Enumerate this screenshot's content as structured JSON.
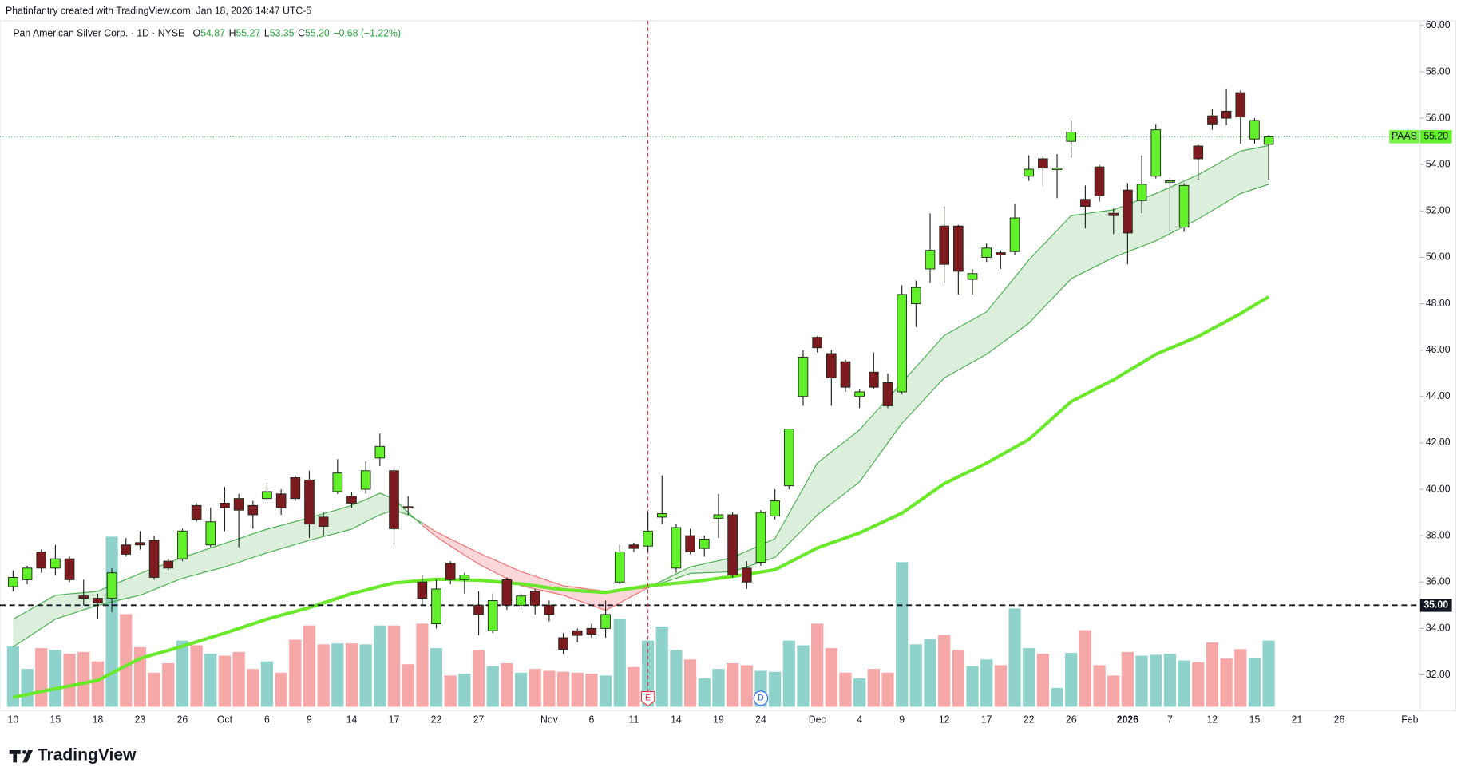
{
  "header": "Phatinfantry created with TradingView.com, Jan 18, 2026 14:47 UTC-5",
  "footer": "TradingView",
  "chart_data": {
    "type": "candlestick",
    "title": "Pan American Silver Corp. · 1D · NYSE",
    "legend_keys": [
      "O",
      "H",
      "L",
      "C"
    ],
    "change": "−0.68 (−1.22%)",
    "symbol": "PAAS",
    "last_price": {
      "value": 55.2,
      "label": "55.20"
    },
    "hline": {
      "value": 35,
      "label": "35.00"
    },
    "ylim": [
      30.46,
      60.2
    ],
    "yticks": [
      {
        "value": 32,
        "label": "32.00"
      },
      {
        "value": 34,
        "label": "34.00"
      },
      {
        "value": 36,
        "label": "36.00"
      },
      {
        "value": 38,
        "label": "38.00"
      },
      {
        "value": 40,
        "label": "40.00"
      },
      {
        "value": 42,
        "label": "42.00"
      },
      {
        "value": 44,
        "label": "44.00"
      },
      {
        "value": 46,
        "label": "46.00"
      },
      {
        "value": 48,
        "label": "48.00"
      },
      {
        "value": 50,
        "label": "50.00"
      },
      {
        "value": 52,
        "label": "52.00"
      },
      {
        "value": 54,
        "label": "54.00"
      },
      {
        "value": 56,
        "label": "56.00"
      },
      {
        "value": 58,
        "label": "58.00"
      },
      {
        "value": 60,
        "label": "60.00"
      }
    ],
    "categories": [
      "10",
      null,
      null,
      "15",
      null,
      null,
      "18",
      null,
      null,
      "23",
      null,
      null,
      "26",
      null,
      null,
      "Oct",
      null,
      null,
      "6",
      null,
      null,
      "9",
      null,
      null,
      "14",
      null,
      null,
      "17",
      null,
      null,
      "22",
      null,
      null,
      "27",
      null,
      null,
      null,
      null,
      "Nov",
      null,
      null,
      "6",
      null,
      null,
      "11",
      null,
      null,
      "14",
      null,
      null,
      "19",
      null,
      null,
      "24",
      null,
      null,
      null,
      "Dec",
      null,
      null,
      "4",
      null,
      null,
      "9",
      null,
      null,
      "12",
      null,
      null,
      "17",
      null,
      null,
      "22",
      null,
      null,
      "26",
      null,
      null,
      null,
      "2026",
      null,
      null,
      "7",
      null,
      null,
      "12",
      null,
      null,
      "15",
      null,
      null,
      "21",
      null,
      null,
      "26",
      null,
      null,
      null,
      null,
      "Feb"
    ],
    "bold_categories": [
      "2026"
    ],
    "candles": {
      "open": [
        35.8,
        36.1,
        37.3,
        36.6,
        37.0,
        35.4,
        35.3,
        35.3,
        37.6,
        37.7,
        37.8,
        36.9,
        37.0,
        39.3,
        37.6,
        39.4,
        39.6,
        39.3,
        39.6,
        39.8,
        40.5,
        40.4,
        38.8,
        39.9,
        39.7,
        40.0,
        41.35,
        40.8,
        39.25,
        36.0,
        34.2,
        36.8,
        36.1,
        35.0,
        33.9,
        36.1,
        35.0,
        35.6,
        35.0,
        33.6,
        33.9,
        34.0,
        34.0,
        36.0,
        37.6,
        37.55,
        38.8,
        36.6,
        38.0,
        37.45,
        38.75,
        38.9,
        36.6,
        36.85,
        38.85,
        40.15,
        44.0,
        46.55,
        45.85,
        45.5,
        44.0,
        45.05,
        44.6,
        44.2,
        48.0,
        49.5,
        51.35,
        51.35,
        49.05,
        50.0,
        50.2,
        50.25,
        53.5,
        54.25,
        53.8,
        55.0,
        52.5,
        53.9,
        51.9,
        52.9,
        52.45,
        53.5,
        53.25,
        51.3,
        54.8,
        56.1,
        56.3,
        57.1,
        55.1,
        54.87,
        null,
        null,
        null,
        null,
        null,
        null,
        null,
        null,
        null,
        null
      ],
      "high": [
        36.5,
        36.7,
        37.4,
        37.6,
        37.1,
        36.1,
        35.5,
        36.6,
        37.9,
        38.2,
        38.0,
        37.0,
        38.3,
        39.4,
        39.2,
        40.1,
        39.8,
        39.5,
        40.3,
        40.0,
        40.6,
        40.8,
        39.0,
        41.3,
        39.9,
        41.2,
        42.4,
        41.0,
        39.7,
        36.3,
        36.1,
        36.9,
        36.4,
        35.6,
        35.5,
        36.2,
        35.5,
        35.7,
        35.2,
        33.8,
        34.0,
        34.2,
        35.2,
        37.6,
        37.7,
        39.0,
        40.6,
        38.5,
        38.3,
        38.0,
        39.8,
        39.0,
        36.9,
        39.1,
        40.0,
        42.6,
        46.0,
        46.6,
        46.0,
        45.6,
        44.3,
        45.9,
        45.0,
        48.8,
        49.0,
        51.9,
        52.2,
        51.4,
        49.5,
        50.6,
        50.3,
        52.3,
        54.4,
        54.4,
        54.45,
        55.9,
        53.1,
        54.0,
        52.1,
        53.2,
        54.4,
        55.75,
        53.4,
        53.2,
        54.85,
        56.4,
        57.25,
        57.2,
        56.0,
        55.27,
        null,
        null,
        null,
        null,
        null,
        null,
        null,
        null,
        null,
        null
      ],
      "low": [
        35.6,
        35.9,
        36.4,
        36.3,
        36.0,
        35.0,
        34.4,
        34.7,
        37.1,
        37.4,
        36.1,
        36.5,
        36.9,
        38.6,
        37.5,
        38.2,
        37.5,
        38.3,
        39.5,
        38.9,
        39.5,
        37.9,
        38.0,
        39.8,
        39.2,
        39.8,
        41.0,
        37.5,
        38.9,
        35.0,
        34.0,
        35.9,
        35.5,
        33.7,
        33.8,
        34.8,
        34.8,
        34.6,
        34.3,
        32.9,
        33.4,
        33.6,
        33.6,
        35.9,
        37.3,
        37.3,
        38.5,
        36.4,
        37.2,
        37.1,
        37.9,
        36.2,
        35.7,
        36.7,
        38.7,
        40.0,
        43.6,
        45.9,
        43.6,
        44.2,
        43.5,
        44.3,
        43.5,
        44.1,
        47.0,
        48.9,
        48.9,
        48.4,
        48.4,
        49.8,
        49.5,
        50.1,
        53.3,
        53.1,
        52.55,
        54.3,
        51.25,
        52.4,
        51.0,
        49.7,
        51.9,
        53.4,
        51.15,
        51.1,
        53.35,
        55.5,
        55.7,
        54.9,
        54.9,
        53.35,
        null,
        null,
        null,
        null,
        null,
        null,
        null,
        null,
        null,
        null
      ],
      "close": [
        36.2,
        36.6,
        36.6,
        37.0,
        36.1,
        35.3,
        35.1,
        36.4,
        37.2,
        37.6,
        36.2,
        36.6,
        38.2,
        38.7,
        38.6,
        39.2,
        39.1,
        38.9,
        39.9,
        39.2,
        39.6,
        38.5,
        38.4,
        40.7,
        39.4,
        40.8,
        41.85,
        38.3,
        39.2,
        35.3,
        35.7,
        36.1,
        36.3,
        34.6,
        35.2,
        35.0,
        35.4,
        35.0,
        34.6,
        33.1,
        33.7,
        33.75,
        34.6,
        37.3,
        37.45,
        38.2,
        38.95,
        38.35,
        37.3,
        37.85,
        38.9,
        36.3,
        36.0,
        39.0,
        39.5,
        42.6,
        45.7,
        46.1,
        44.8,
        44.4,
        44.2,
        44.4,
        43.6,
        48.4,
        48.7,
        50.3,
        49.7,
        49.4,
        49.3,
        50.4,
        50.1,
        51.7,
        53.8,
        53.85,
        53.85,
        55.4,
        52.2,
        52.65,
        51.8,
        51.05,
        53.15,
        55.5,
        53.3,
        53.1,
        54.25,
        55.75,
        56.0,
        56.05,
        55.9,
        55.2,
        null,
        null,
        null,
        null,
        null,
        null,
        null,
        null,
        null,
        null
      ]
    },
    "volume": [
      64,
      40,
      62,
      60,
      56,
      58,
      48,
      180,
      98,
      63,
      36,
      46,
      70,
      65,
      56,
      54,
      58,
      40,
      48,
      36,
      71,
      86,
      66,
      67,
      67,
      66,
      86,
      86,
      45,
      88,
      62,
      33,
      35,
      60,
      43,
      46,
      36,
      40,
      38,
      37,
      36,
      35,
      33,
      93,
      42,
      70,
      85,
      60,
      50,
      30,
      40,
      46,
      44,
      38,
      37,
      70,
      65,
      88,
      62,
      36,
      30,
      40,
      36,
      153,
      66,
      72,
      76,
      60,
      43,
      50,
      44,
      104,
      62,
      56,
      20,
      57,
      81,
      44,
      33,
      58,
      54,
      55,
      56,
      49,
      47,
      68,
      51,
      61,
      52,
      70,
      null,
      null,
      null,
      null,
      null,
      null,
      null,
      null,
      null,
      null
    ],
    "ma_long": [
      31.03,
      31.15,
      31.28,
      31.4,
      31.52,
      31.64,
      31.76,
      32.07,
      32.39,
      32.7,
      32.88,
      33.05,
      33.23,
      33.42,
      33.61,
      33.8,
      34.0,
      34.2,
      34.4,
      34.57,
      34.73,
      34.9,
      35.1,
      35.3,
      35.5,
      35.65,
      35.81,
      35.96,
      36.01,
      36.07,
      36.12,
      36.11,
      36.09,
      36.08,
      36.03,
      35.97,
      35.92,
      35.84,
      35.75,
      35.67,
      35.63,
      35.59,
      35.55,
      35.65,
      35.74,
      35.84,
      35.89,
      35.95,
      36.0,
      36.08,
      36.16,
      36.24,
      36.34,
      36.43,
      36.53,
      36.84,
      37.16,
      37.47,
      37.69,
      37.9,
      38.12,
      38.4,
      38.69,
      38.97,
      39.39,
      39.82,
      40.24,
      40.54,
      40.83,
      41.13,
      41.47,
      41.81,
      42.15,
      42.69,
      43.24,
      43.78,
      44.09,
      44.41,
      44.72,
      45.09,
      45.45,
      45.82,
      46.08,
      46.33,
      46.59,
      46.92,
      47.24,
      47.57,
      47.94,
      48.3,
      null,
      null,
      null,
      null,
      null,
      null,
      null,
      null,
      null,
      null
    ],
    "ribbon_fast": [
      34.4,
      34.74,
      35.09,
      35.43,
      35.49,
      35.54,
      35.6,
      35.86,
      36.11,
      36.37,
      36.6,
      36.83,
      37.06,
      37.26,
      37.47,
      37.67,
      37.87,
      38.08,
      38.28,
      38.44,
      38.61,
      38.77,
      38.95,
      39.12,
      39.3,
      39.55,
      39.83,
      39.58,
      39.0,
      38.45,
      37.95,
      37.56,
      37.16,
      36.77,
      36.46,
      36.15,
      35.84,
      35.7,
      35.57,
      35.43,
      35.21,
      35.0,
      34.78,
      35.1,
      35.43,
      35.75,
      36.05,
      36.35,
      36.65,
      36.79,
      36.92,
      37.06,
      37.33,
      37.6,
      37.87,
      38.96,
      40.04,
      41.13,
      41.61,
      42.08,
      42.56,
      43.24,
      43.92,
      44.6,
      45.28,
      45.95,
      46.63,
      46.97,
      47.31,
      47.65,
      48.4,
      49.14,
      49.89,
      50.53,
      51.16,
      51.8,
      51.88,
      51.97,
      52.05,
      52.28,
      52.52,
      52.75,
      53.02,
      53.29,
      53.56,
      53.9,
      54.24,
      54.58,
      54.7,
      54.82,
      null,
      null,
      null,
      null,
      null,
      null,
      null,
      null,
      null,
      null
    ],
    "ribbon_slow": [
      33.2,
      33.6,
      34.0,
      34.4,
      34.6,
      34.8,
      35.0,
      35.14,
      35.29,
      35.43,
      35.67,
      35.92,
      36.16,
      36.32,
      36.49,
      36.65,
      36.85,
      37.06,
      37.26,
      37.44,
      37.62,
      37.8,
      37.96,
      38.12,
      38.28,
      38.6,
      38.9,
      39.1,
      38.9,
      38.55,
      38.16,
      37.86,
      37.56,
      37.26,
      36.99,
      36.72,
      36.45,
      36.25,
      36.04,
      35.84,
      35.76,
      35.68,
      35.6,
      35.65,
      35.7,
      35.75,
      35.96,
      36.16,
      36.37,
      36.4,
      36.42,
      36.45,
      36.65,
      36.86,
      37.06,
      37.67,
      38.28,
      38.89,
      39.37,
      39.84,
      40.32,
      41.16,
      42.0,
      42.84,
      43.49,
      44.15,
      44.8,
      45.14,
      45.48,
      45.82,
      46.27,
      46.71,
      47.16,
      47.8,
      48.44,
      49.08,
      49.39,
      49.69,
      50.0,
      50.24,
      50.47,
      50.71,
      51.02,
      51.34,
      51.65,
      52.02,
      52.38,
      52.75,
      52.95,
      53.15,
      null,
      null,
      null,
      null,
      null,
      null,
      null,
      null,
      null,
      null
    ],
    "events": [
      {
        "label": "E",
        "index": 45,
        "line": true,
        "color": "#f23645"
      },
      {
        "label": "D",
        "index": 53,
        "line": false,
        "color": "#2962ff"
      }
    ],
    "up_color": "#62f02a",
    "down_color": "#7c1a1f",
    "border_color": "#1f2a1a",
    "volume_up_color": "#8fd1cb",
    "volume_down_color": "#f6a7a7",
    "ma_color": "#6ae82a",
    "ribbon_up_color": "#4caf50",
    "ribbon_down_color": "#ef6f6f",
    "ribbon_up_fill": "rgba(76,175,80,0.2)",
    "ribbon_down_fill": "rgba(242,54,69,0.2)",
    "price_line_color": "#4caf50",
    "legend_value_color": "#26a03a"
  }
}
